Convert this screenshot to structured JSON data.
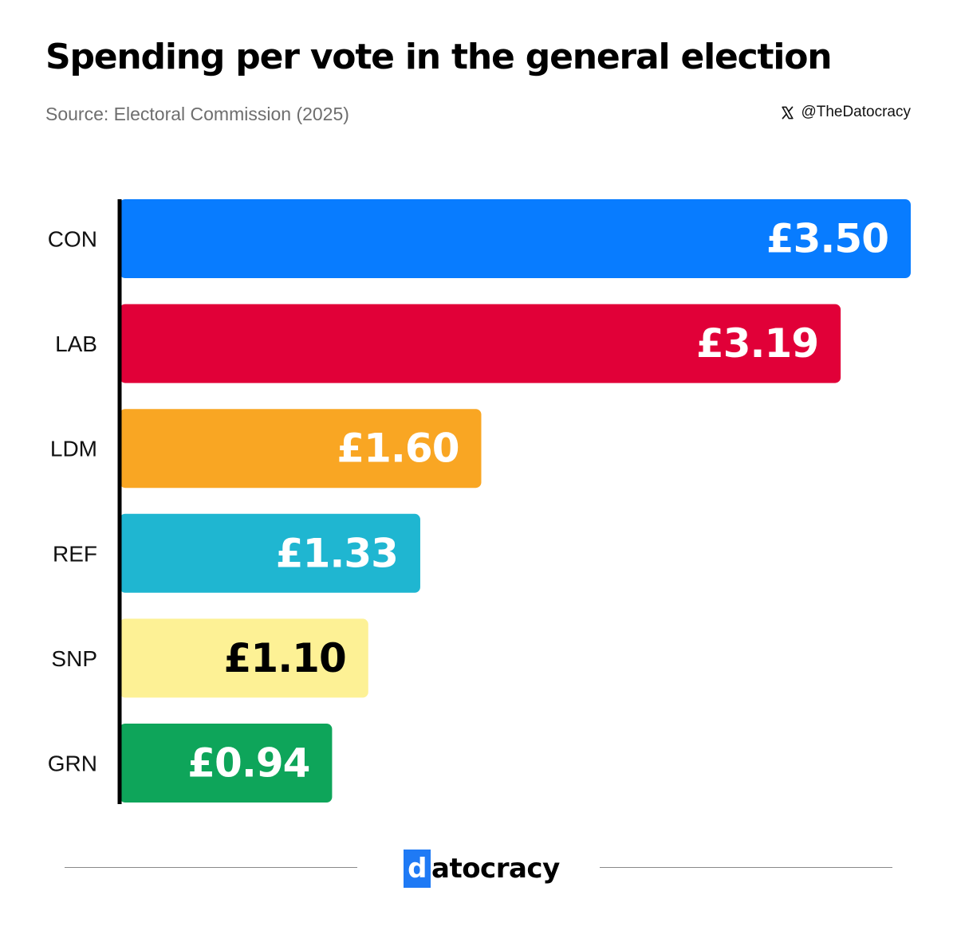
{
  "header": {
    "title": "Spending per vote in the general election",
    "source": "Source: Electoral Commission (2025)",
    "handle": "@TheDatocracy",
    "handle_icon": "x-logo-icon"
  },
  "footer": {
    "brand_first_letter": "d",
    "brand_rest": "atocracy",
    "brand_color": "#1f7af5"
  },
  "chart_data": {
    "type": "bar",
    "orientation": "horizontal",
    "title": "Spending per vote in the general election",
    "xlabel": "",
    "ylabel": "",
    "categories": [
      "CON",
      "LAB",
      "LDM",
      "REF",
      "SNP",
      "GRN"
    ],
    "values": [
      3.5,
      3.19,
      1.6,
      1.33,
      1.1,
      0.94
    ],
    "value_labels": [
      "£3.50",
      "£3.19",
      "£1.60",
      "£1.33",
      "£1.10",
      "£0.94"
    ],
    "colors": [
      "#087cff",
      "#e10038",
      "#f9a623",
      "#1fb6d1",
      "#fdf195",
      "#0ea55a"
    ],
    "label_colors": [
      "#ffffff",
      "#ffffff",
      "#ffffff",
      "#ffffff",
      "#000000",
      "#ffffff"
    ],
    "xlim": [
      0,
      3.5
    ],
    "grid": false,
    "legend": "none"
  }
}
